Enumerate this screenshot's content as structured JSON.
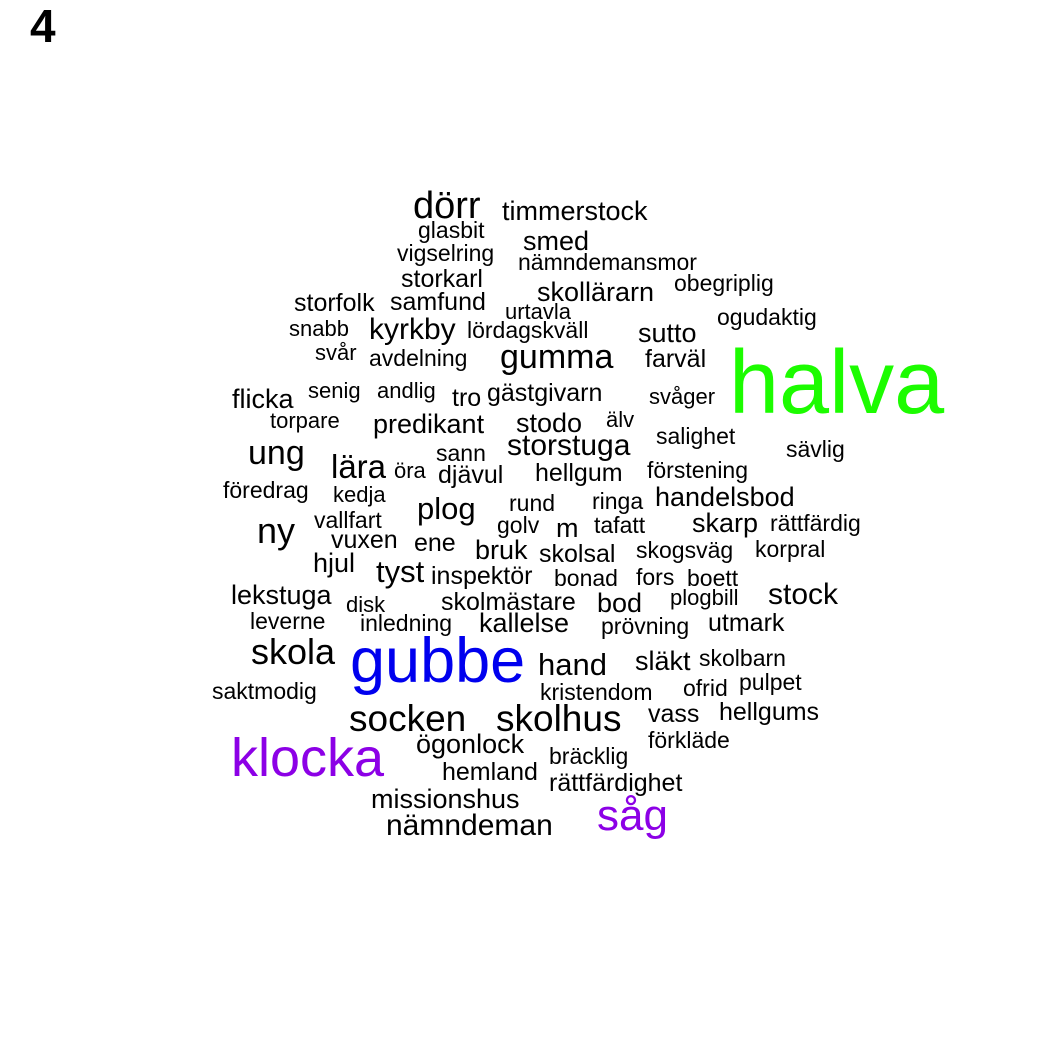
{
  "panel_label": "4",
  "chart_data": {
    "type": "wordcloud",
    "colors": {
      "default": "#000000",
      "green": "#1cfc00",
      "blue": "#0000ee",
      "purple": "#8c00e6"
    },
    "words": [
      {
        "text": "halva",
        "size": 5.0,
        "color": "green"
      },
      {
        "text": "gubbe",
        "size": 3.5,
        "color": "blue"
      },
      {
        "text": "klocka",
        "size": 3.0,
        "color": "purple"
      },
      {
        "text": "såg",
        "size": 2.4,
        "color": "purple"
      },
      {
        "text": "socken",
        "size": 2.1,
        "color": "default"
      },
      {
        "text": "skolhus",
        "size": 2.1,
        "color": "default"
      },
      {
        "text": "dörr",
        "size": 2.1,
        "color": "default"
      },
      {
        "text": "skola",
        "size": 2.0,
        "color": "default"
      },
      {
        "text": "ny",
        "size": 2.0,
        "color": "default"
      },
      {
        "text": "ung",
        "size": 1.9,
        "color": "default"
      },
      {
        "text": "gumma",
        "size": 1.9,
        "color": "default"
      },
      {
        "text": "storstuga",
        "size": 1.8,
        "color": "default"
      },
      {
        "text": "lära",
        "size": 1.8,
        "color": "default"
      },
      {
        "text": "plog",
        "size": 1.8,
        "color": "default"
      },
      {
        "text": "tyst",
        "size": 1.8,
        "color": "default"
      },
      {
        "text": "hand",
        "size": 1.8,
        "color": "default"
      },
      {
        "text": "nämndeman",
        "size": 1.8,
        "color": "default"
      },
      {
        "text": "kyrkby",
        "size": 1.7,
        "color": "default"
      },
      {
        "text": "stock",
        "size": 1.7,
        "color": "default"
      },
      {
        "text": "släkt",
        "size": 1.6,
        "color": "default"
      },
      {
        "text": "timmerstock",
        "size": 1.5,
        "color": "default"
      },
      {
        "text": "smed",
        "size": 1.5,
        "color": "default"
      },
      {
        "text": "skollärarn",
        "size": 1.5,
        "color": "default"
      },
      {
        "text": "sutto",
        "size": 1.5,
        "color": "default"
      },
      {
        "text": "flicka",
        "size": 1.5,
        "color": "default"
      },
      {
        "text": "predikant",
        "size": 1.5,
        "color": "default"
      },
      {
        "text": "stodo",
        "size": 1.5,
        "color": "default"
      },
      {
        "text": "handelsbod",
        "size": 1.5,
        "color": "default"
      },
      {
        "text": "skarp",
        "size": 1.5,
        "color": "default"
      },
      {
        "text": "bruk",
        "size": 1.5,
        "color": "default"
      },
      {
        "text": "m",
        "size": 1.5,
        "color": "default"
      },
      {
        "text": "hjul",
        "size": 1.5,
        "color": "default"
      },
      {
        "text": "lekstuga",
        "size": 1.5,
        "color": "default"
      },
      {
        "text": "bod",
        "size": 1.5,
        "color": "default"
      },
      {
        "text": "kallelse",
        "size": 1.5,
        "color": "default"
      },
      {
        "text": "ögonlock",
        "size": 1.5,
        "color": "default"
      },
      {
        "text": "missionshus",
        "size": 1.5,
        "color": "default"
      },
      {
        "text": "rättfärdighet",
        "size": 1.4,
        "color": "default"
      },
      {
        "text": "hellgum",
        "size": 1.4,
        "color": "default"
      },
      {
        "text": "djävul",
        "size": 1.4,
        "color": "default"
      },
      {
        "text": "skolsal",
        "size": 1.4,
        "color": "default"
      },
      {
        "text": "vuxen",
        "size": 1.4,
        "color": "default"
      },
      {
        "text": "ene",
        "size": 1.4,
        "color": "default"
      },
      {
        "text": "samfund",
        "size": 1.4,
        "color": "default"
      },
      {
        "text": "storkarl",
        "size": 1.4,
        "color": "default"
      },
      {
        "text": "storfolk",
        "size": 1.4,
        "color": "default"
      },
      {
        "text": "hemland",
        "size": 1.4,
        "color": "default"
      },
      {
        "text": "vass",
        "size": 1.4,
        "color": "default"
      },
      {
        "text": "hellgums",
        "size": 1.4,
        "color": "default"
      },
      {
        "text": "gästgivarn",
        "size": 1.4,
        "color": "default"
      },
      {
        "text": "tro",
        "size": 1.4,
        "color": "default"
      },
      {
        "text": "farväl",
        "size": 1.4,
        "color": "default"
      },
      {
        "text": "inspektör",
        "size": 1.4,
        "color": "default"
      },
      {
        "text": "skolmästare",
        "size": 1.4,
        "color": "default"
      },
      {
        "text": "utmark",
        "size": 1.4,
        "color": "default"
      },
      {
        "text": "avdelning",
        "size": 1.3,
        "color": "default"
      },
      {
        "text": "lördagskväll",
        "size": 1.3,
        "color": "default"
      },
      {
        "text": "saktmodig",
        "size": 1.3,
        "color": "default"
      },
      {
        "text": "kristendom",
        "size": 1.3,
        "color": "default"
      },
      {
        "text": "ofrid",
        "size": 1.3,
        "color": "default"
      },
      {
        "text": "pulpet",
        "size": 1.3,
        "color": "default"
      },
      {
        "text": "skolbarn",
        "size": 1.3,
        "color": "default"
      },
      {
        "text": "förkläde",
        "size": 1.3,
        "color": "default"
      },
      {
        "text": "bräcklig",
        "size": 1.3,
        "color": "default"
      },
      {
        "text": "rund",
        "size": 1.3,
        "color": "default"
      },
      {
        "text": "golv",
        "size": 1.3,
        "color": "default"
      },
      {
        "text": "tafatt",
        "size": 1.3,
        "color": "default"
      },
      {
        "text": "ringa",
        "size": 1.3,
        "color": "default"
      },
      {
        "text": "rättfärdig",
        "size": 1.3,
        "color": "default"
      },
      {
        "text": "skogsväg",
        "size": 1.3,
        "color": "default"
      },
      {
        "text": "korpral",
        "size": 1.3,
        "color": "default"
      },
      {
        "text": "bonad",
        "size": 1.3,
        "color": "default"
      },
      {
        "text": "fors",
        "size": 1.3,
        "color": "default"
      },
      {
        "text": "boett",
        "size": 1.3,
        "color": "default"
      },
      {
        "text": "vallfart",
        "size": 1.3,
        "color": "default"
      },
      {
        "text": "sann",
        "size": 1.3,
        "color": "default"
      },
      {
        "text": "salighet",
        "size": 1.3,
        "color": "default"
      },
      {
        "text": "förstening",
        "size": 1.3,
        "color": "default"
      },
      {
        "text": "sävlig",
        "size": 1.3,
        "color": "default"
      },
      {
        "text": "föredrag",
        "size": 1.3,
        "color": "default"
      },
      {
        "text": "glasbit",
        "size": 1.3,
        "color": "default"
      },
      {
        "text": "vigselring",
        "size": 1.3,
        "color": "default"
      },
      {
        "text": "nämndemansmor",
        "size": 1.3,
        "color": "default"
      },
      {
        "text": "obegriplig",
        "size": 1.3,
        "color": "default"
      },
      {
        "text": "ogudaktig",
        "size": 1.3,
        "color": "default"
      },
      {
        "text": "leverne",
        "size": 1.3,
        "color": "default"
      },
      {
        "text": "inledning",
        "size": 1.3,
        "color": "default"
      },
      {
        "text": "prövning",
        "size": 1.3,
        "color": "default"
      },
      {
        "text": "plogbill",
        "size": 1.2,
        "color": "default"
      },
      {
        "text": "urtavla",
        "size": 1.2,
        "color": "default"
      },
      {
        "text": "snabb",
        "size": 1.2,
        "color": "default"
      },
      {
        "text": "svår",
        "size": 1.2,
        "color": "default"
      },
      {
        "text": "senig",
        "size": 1.2,
        "color": "default"
      },
      {
        "text": "andlig",
        "size": 1.2,
        "color": "default"
      },
      {
        "text": "svåger",
        "size": 1.2,
        "color": "default"
      },
      {
        "text": "torpare",
        "size": 1.2,
        "color": "default"
      },
      {
        "text": "älv",
        "size": 1.2,
        "color": "default"
      },
      {
        "text": "öra",
        "size": 1.2,
        "color": "default"
      },
      {
        "text": "kedja",
        "size": 1.2,
        "color": "default"
      },
      {
        "text": "disk",
        "size": 1.2,
        "color": "default"
      }
    ]
  }
}
